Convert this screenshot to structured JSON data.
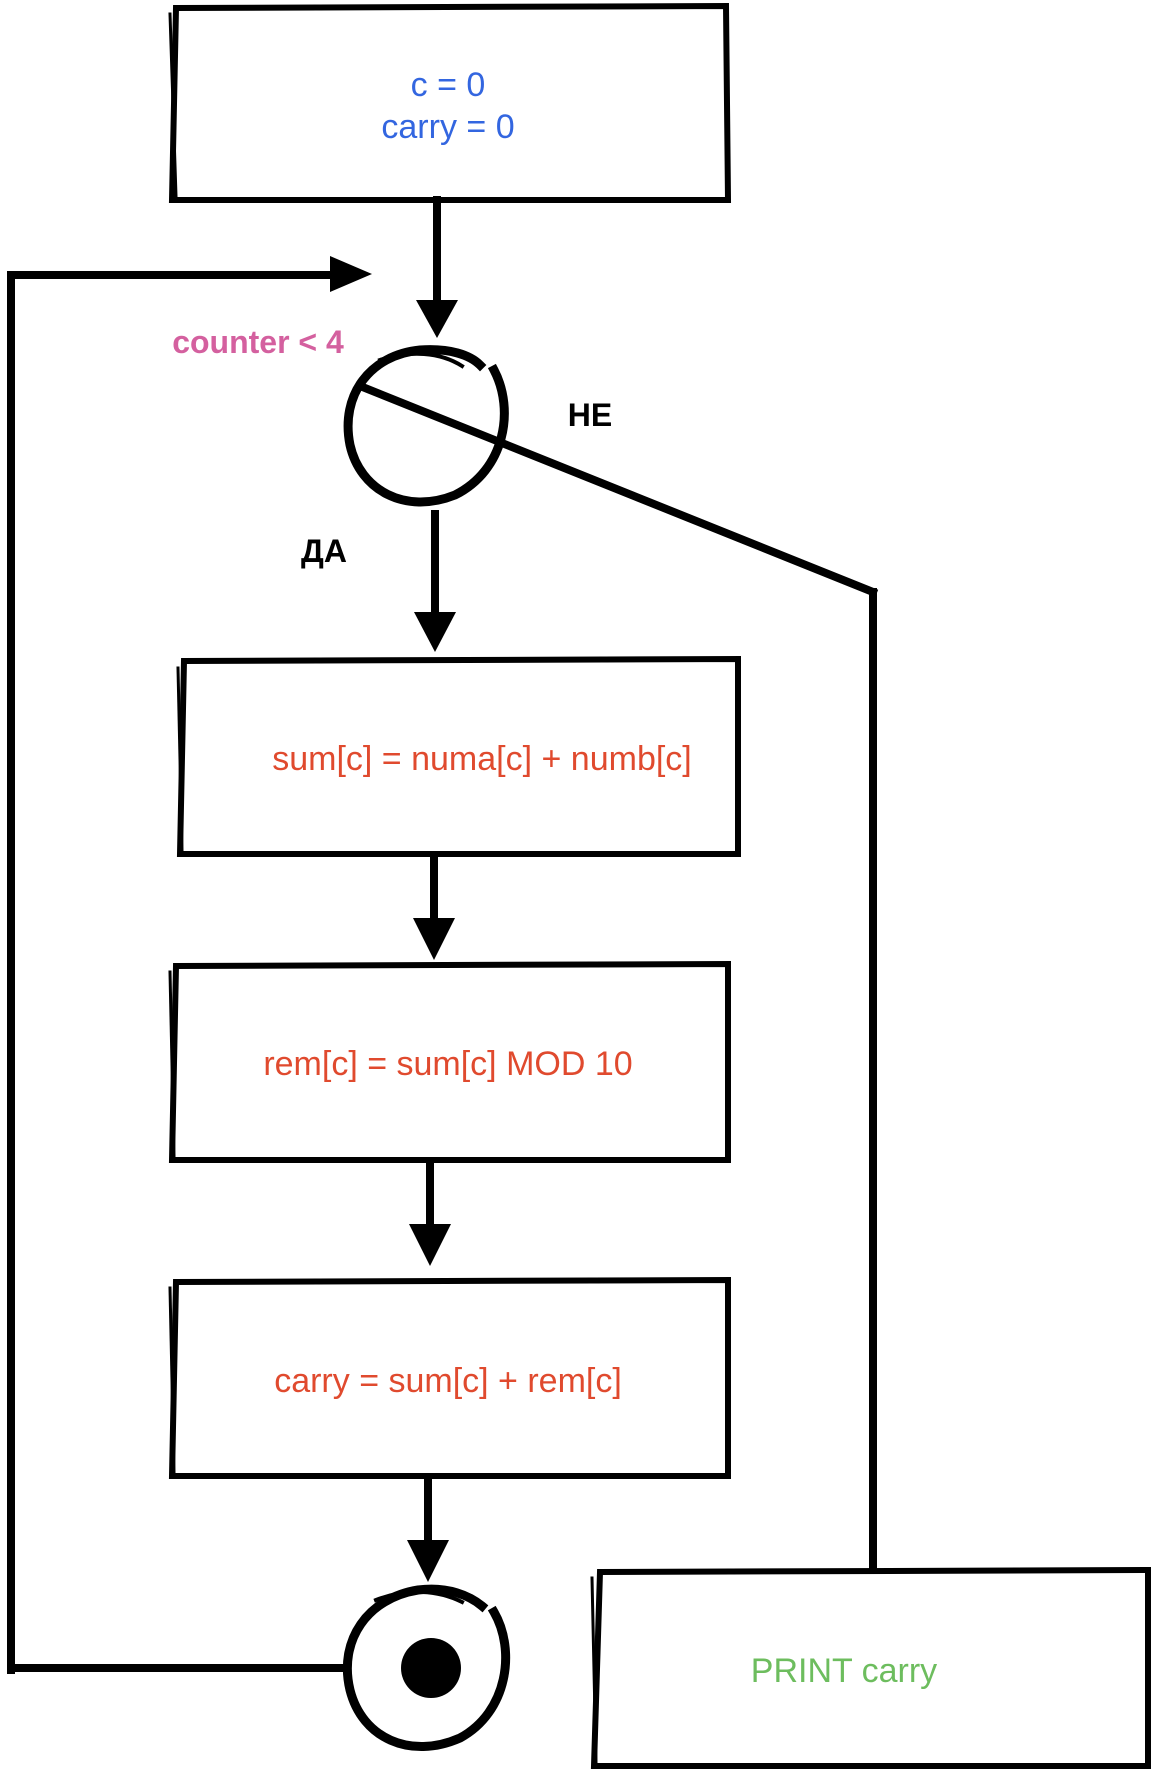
{
  "colors": {
    "stroke": "#000000",
    "init_text": "#3366e0",
    "condition_text": "#d4609f",
    "process_text": "#e04a2e",
    "output_text": "#6dbd5e",
    "label_text": "#000000"
  },
  "init_box": {
    "line1": "c = 0",
    "line2": "carry = 0"
  },
  "decision": {
    "condition": "counter < 4",
    "yes_label": "ДА",
    "no_label": "НЕ"
  },
  "process_boxes": [
    {
      "text": "sum[c] = numa[c] + numb[c]"
    },
    {
      "text": "rem[c] = sum[c] MOD 10"
    },
    {
      "text": "carry = sum[c] + rem[c]"
    }
  ],
  "output_box": {
    "text": "PRINT carry"
  },
  "icons": {
    "decision": "decision-circle-icon",
    "end_node": "merge-node-icon"
  }
}
